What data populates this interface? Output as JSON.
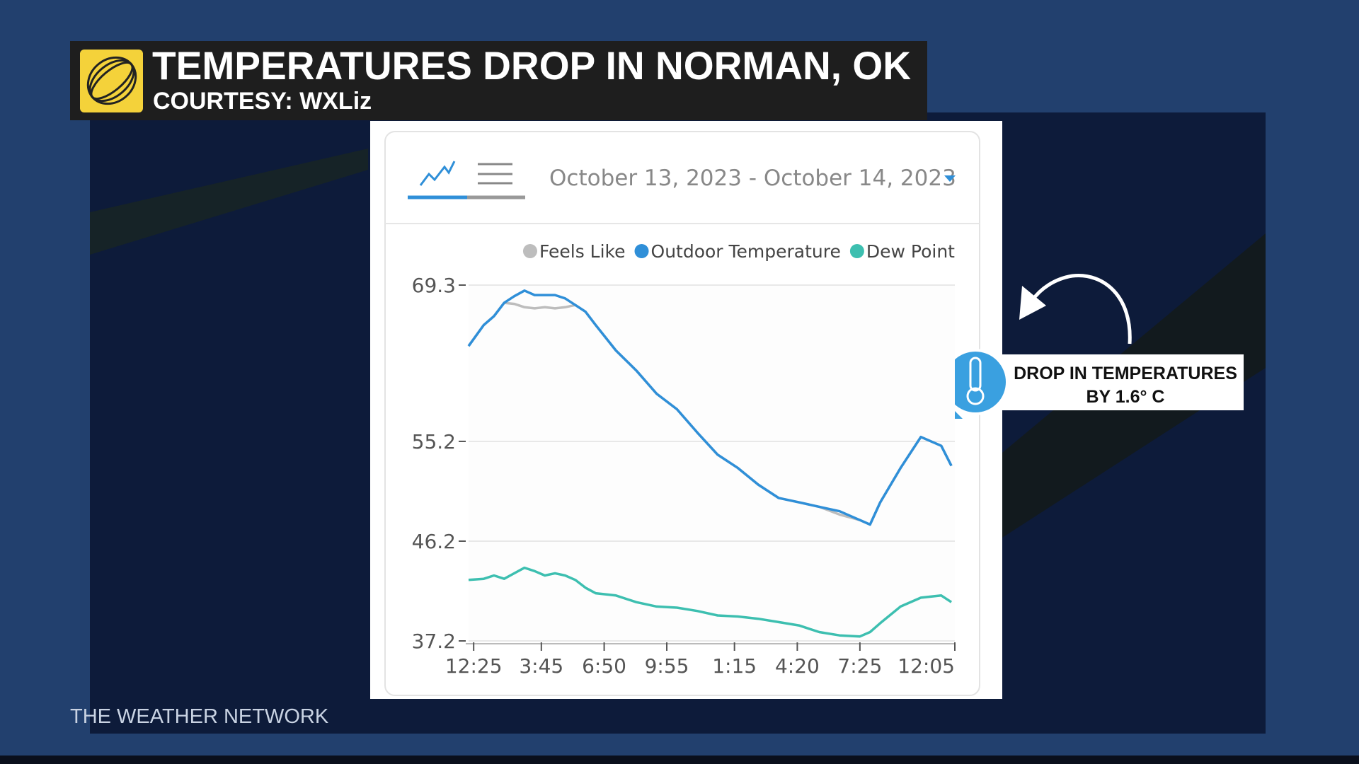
{
  "header": {
    "title": "TEMPERATURES DROP IN NORMAN, OK",
    "subtitle": "COURTESY: WXLiz"
  },
  "date_range": "October 13, 2023 - October 14, 2023",
  "annotation": {
    "lines": [
      "DROP IN TEMPERATURES",
      "BY 1.6° C"
    ]
  },
  "footer": {
    "brand": "THE WEATHER NETWORK"
  },
  "chart_data": {
    "type": "line",
    "x": [
      -0.25,
      0.5,
      1,
      1.5,
      2,
      2.5,
      3,
      3.5,
      4,
      4.5,
      5,
      5.5,
      6,
      7,
      8,
      9,
      10,
      11,
      12,
      13,
      14,
      15,
      16,
      17,
      18,
      19,
      19.5,
      20,
      21,
      22,
      23,
      23.5
    ],
    "xlim": [
      -0.25,
      23.67
    ],
    "xticks": [
      {
        "value": 0,
        "label": "12:25"
      },
      {
        "value": 3.33,
        "label": "3:45"
      },
      {
        "value": 6.42,
        "label": "6:50"
      },
      {
        "value": 9.5,
        "label": "9:55"
      },
      {
        "value": 12.83,
        "label": "1:15"
      },
      {
        "value": 15.92,
        "label": "4:20"
      },
      {
        "value": 19,
        "label": "7:25"
      },
      {
        "value": 23.67,
        "label": "12:05"
      }
    ],
    "ylim": [
      37.2,
      69.3
    ],
    "yticks": [
      37.2,
      46.2,
      55.2,
      69.3
    ],
    "grid": true,
    "legend": "top-right",
    "series": [
      {
        "name": "Feels Like",
        "color": "#bdbdbd",
        "values": [
          63.8,
          65.7,
          66.5,
          67.7,
          67.6,
          67.3,
          67.2,
          67.3,
          67.2,
          67.3,
          67.5,
          66.9,
          65.7,
          63.4,
          61.6,
          59.5,
          58.1,
          56.0,
          54.0,
          52.8,
          51.3,
          50.1,
          49.7,
          49.3,
          48.6,
          48.1,
          47.7,
          49.7,
          52.8,
          55.6,
          54.8,
          53.0
        ]
      },
      {
        "name": "Outdoor Temperature",
        "color": "#2f8fd8",
        "values": [
          63.8,
          65.7,
          66.5,
          67.7,
          68.3,
          68.8,
          68.4,
          68.4,
          68.4,
          68.1,
          67.5,
          66.9,
          65.7,
          63.4,
          61.6,
          59.5,
          58.1,
          56.0,
          54.0,
          52.8,
          51.3,
          50.1,
          49.7,
          49.3,
          48.9,
          48.1,
          47.7,
          49.7,
          52.8,
          55.6,
          54.8,
          53.0
        ]
      },
      {
        "name": "Dew Point",
        "color": "#3dbfb0",
        "values": [
          42.7,
          42.8,
          43.1,
          42.8,
          43.3,
          43.8,
          43.5,
          43.1,
          43.3,
          43.1,
          42.7,
          42.0,
          41.5,
          41.3,
          40.7,
          40.3,
          40.2,
          39.9,
          39.5,
          39.4,
          39.2,
          38.9,
          38.6,
          38.0,
          37.7,
          37.6,
          38.0,
          38.8,
          40.3,
          41.1,
          41.3,
          40.7
        ]
      }
    ]
  }
}
